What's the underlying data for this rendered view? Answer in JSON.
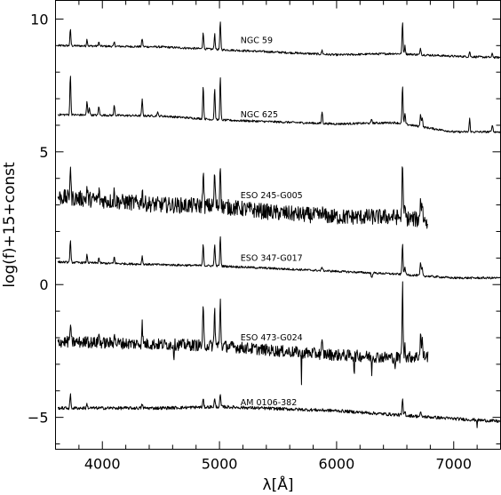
{
  "chart_data": {
    "type": "line",
    "xlabel": "λ[Å]",
    "ylabel": "log(f)+15+const",
    "xlim": [
      3600,
      7400
    ],
    "ylim": [
      -6.2,
      10.7
    ],
    "x_ticks": [
      4000,
      5000,
      6000,
      7000
    ],
    "x_tick_labels": [
      "4000",
      "5000",
      "6000",
      "7000"
    ],
    "y_ticks": [
      -5,
      0,
      5,
      10
    ],
    "y_tick_labels": [
      "−5",
      "0",
      "5",
      "10"
    ],
    "grid": false,
    "series": [
      {
        "name": "NGC 59",
        "label_at": [
          5180,
          9.1
        ],
        "x_range": [
          3620,
          7400
        ],
        "noise": 0.04,
        "continuum": [
          [
            3620,
            9.0
          ],
          [
            4500,
            8.95
          ],
          [
            5000,
            8.85
          ],
          [
            6000,
            8.65
          ],
          [
            6500,
            8.7
          ],
          [
            7000,
            8.6
          ],
          [
            7400,
            8.55
          ]
        ],
        "lines": [
          [
            3727,
            0.6
          ],
          [
            3869,
            0.25
          ],
          [
            3970,
            0.15
          ],
          [
            4102,
            0.15
          ],
          [
            4340,
            0.3
          ],
          [
            4861,
            0.65
          ],
          [
            4959,
            0.6
          ],
          [
            5007,
            1.05
          ],
          [
            5876,
            0.15
          ],
          [
            6300,
            0.05
          ],
          [
            6563,
            1.2
          ],
          [
            6584,
            0.3
          ],
          [
            6717,
            0.25
          ],
          [
            7136,
            0.2
          ],
          [
            7330,
            0.15
          ]
        ]
      },
      {
        "name": "NGC 625",
        "label_at": [
          5180,
          6.3
        ],
        "x_range": [
          3620,
          7400
        ],
        "noise": 0.04,
        "continuum": [
          [
            3620,
            6.4
          ],
          [
            4500,
            6.35
          ],
          [
            5000,
            6.2
          ],
          [
            6000,
            6.05
          ],
          [
            6500,
            6.1
          ],
          [
            7000,
            5.75
          ],
          [
            7400,
            5.75
          ]
        ],
        "lines": [
          [
            3727,
            1.5
          ],
          [
            3869,
            0.5
          ],
          [
            3889,
            0.3
          ],
          [
            3970,
            0.35
          ],
          [
            4102,
            0.4
          ],
          [
            4340,
            0.6
          ],
          [
            4471,
            0.15
          ],
          [
            4861,
            1.25
          ],
          [
            4959,
            1.2
          ],
          [
            5007,
            1.6
          ],
          [
            5876,
            0.45
          ],
          [
            6300,
            0.15
          ],
          [
            6563,
            1.45
          ],
          [
            6584,
            0.4
          ],
          [
            6717,
            0.5
          ],
          [
            6731,
            0.35
          ],
          [
            7136,
            0.5
          ],
          [
            7330,
            0.3
          ]
        ]
      },
      {
        "name": "ESO 245-G005",
        "label_at": [
          5180,
          3.25
        ],
        "x_range": [
          3620,
          6780
        ],
        "noise": 0.3,
        "continuum": [
          [
            3620,
            3.3
          ],
          [
            4500,
            3.0
          ],
          [
            5000,
            2.95
          ],
          [
            5500,
            2.7
          ],
          [
            6000,
            2.55
          ],
          [
            6500,
            2.55
          ],
          [
            6780,
            2.4
          ]
        ],
        "lines": [
          [
            3727,
            1.25
          ],
          [
            3869,
            0.4
          ],
          [
            3970,
            0.3
          ],
          [
            4102,
            0.35
          ],
          [
            4340,
            0.55
          ],
          [
            4861,
            1.4
          ],
          [
            4959,
            1.3
          ],
          [
            5007,
            1.75
          ],
          [
            5876,
            0.2
          ],
          [
            6563,
            2.2
          ],
          [
            6584,
            0.4
          ],
          [
            6717,
            0.9
          ],
          [
            6731,
            0.7
          ]
        ]
      },
      {
        "name": "ESO 347-G017",
        "label_at": [
          5180,
          0.9
        ],
        "x_range": [
          3620,
          7400
        ],
        "noise": 0.04,
        "continuum": [
          [
            3620,
            0.85
          ],
          [
            4500,
            0.75
          ],
          [
            5000,
            0.7
          ],
          [
            6000,
            0.5
          ],
          [
            6500,
            0.4
          ],
          [
            7000,
            0.25
          ],
          [
            7400,
            0.25
          ]
        ],
        "lines": [
          [
            3727,
            0.8
          ],
          [
            3869,
            0.3
          ],
          [
            3970,
            0.2
          ],
          [
            4102,
            0.25
          ],
          [
            4340,
            0.3
          ],
          [
            4861,
            0.85
          ],
          [
            4959,
            0.85
          ],
          [
            5007,
            1.1
          ],
          [
            5876,
            0.15
          ],
          [
            6300,
            -0.2
          ],
          [
            6563,
            1.2
          ],
          [
            6584,
            0.3
          ],
          [
            6717,
            0.5
          ],
          [
            6731,
            0.3
          ]
        ]
      },
      {
        "name": "ESO 473-G024",
        "label_at": [
          5180,
          -2.1
        ],
        "x_range": [
          3620,
          6780
        ],
        "noise": 0.22,
        "continuum": [
          [
            3620,
            -2.15
          ],
          [
            4500,
            -2.25
          ],
          [
            5000,
            -2.3
          ],
          [
            5500,
            -2.5
          ],
          [
            6000,
            -2.65
          ],
          [
            6500,
            -2.75
          ],
          [
            6780,
            -2.7
          ]
        ],
        "lines": [
          [
            3727,
            0.65
          ],
          [
            3869,
            0.3
          ],
          [
            3970,
            0.3
          ],
          [
            4102,
            0.45
          ],
          [
            4340,
            0.75
          ],
          [
            4861,
            1.4
          ],
          [
            4959,
            1.4
          ],
          [
            5007,
            1.75
          ],
          [
            5876,
            0.4
          ],
          [
            6563,
            2.75
          ],
          [
            6584,
            0.5
          ],
          [
            6717,
            0.9
          ],
          [
            6731,
            0.6
          ]
        ],
        "dips": [
          [
            4610,
            -0.55
          ],
          [
            5700,
            -1.15
          ],
          [
            6150,
            -0.8
          ],
          [
            6300,
            -0.55
          ],
          [
            6500,
            -0.6
          ]
        ]
      },
      {
        "name": "AM 0106-382",
        "label_at": [
          5180,
          -4.55
        ],
        "x_range": [
          3620,
          7400
        ],
        "noise": 0.06,
        "continuum": [
          [
            3620,
            -4.65
          ],
          [
            4500,
            -4.65
          ],
          [
            5000,
            -4.6
          ],
          [
            6000,
            -4.75
          ],
          [
            6500,
            -4.9
          ],
          [
            7000,
            -5.05
          ],
          [
            7400,
            -5.15
          ]
        ],
        "lines": [
          [
            3727,
            0.5
          ],
          [
            3869,
            0.15
          ],
          [
            4340,
            0.15
          ],
          [
            4861,
            0.3
          ],
          [
            4959,
            0.3
          ],
          [
            5007,
            0.45
          ],
          [
            6563,
            0.6
          ],
          [
            6584,
            0.15
          ],
          [
            6717,
            0.15
          ]
        ],
        "dips": [
          [
            7200,
            -0.25
          ]
        ]
      }
    ]
  }
}
